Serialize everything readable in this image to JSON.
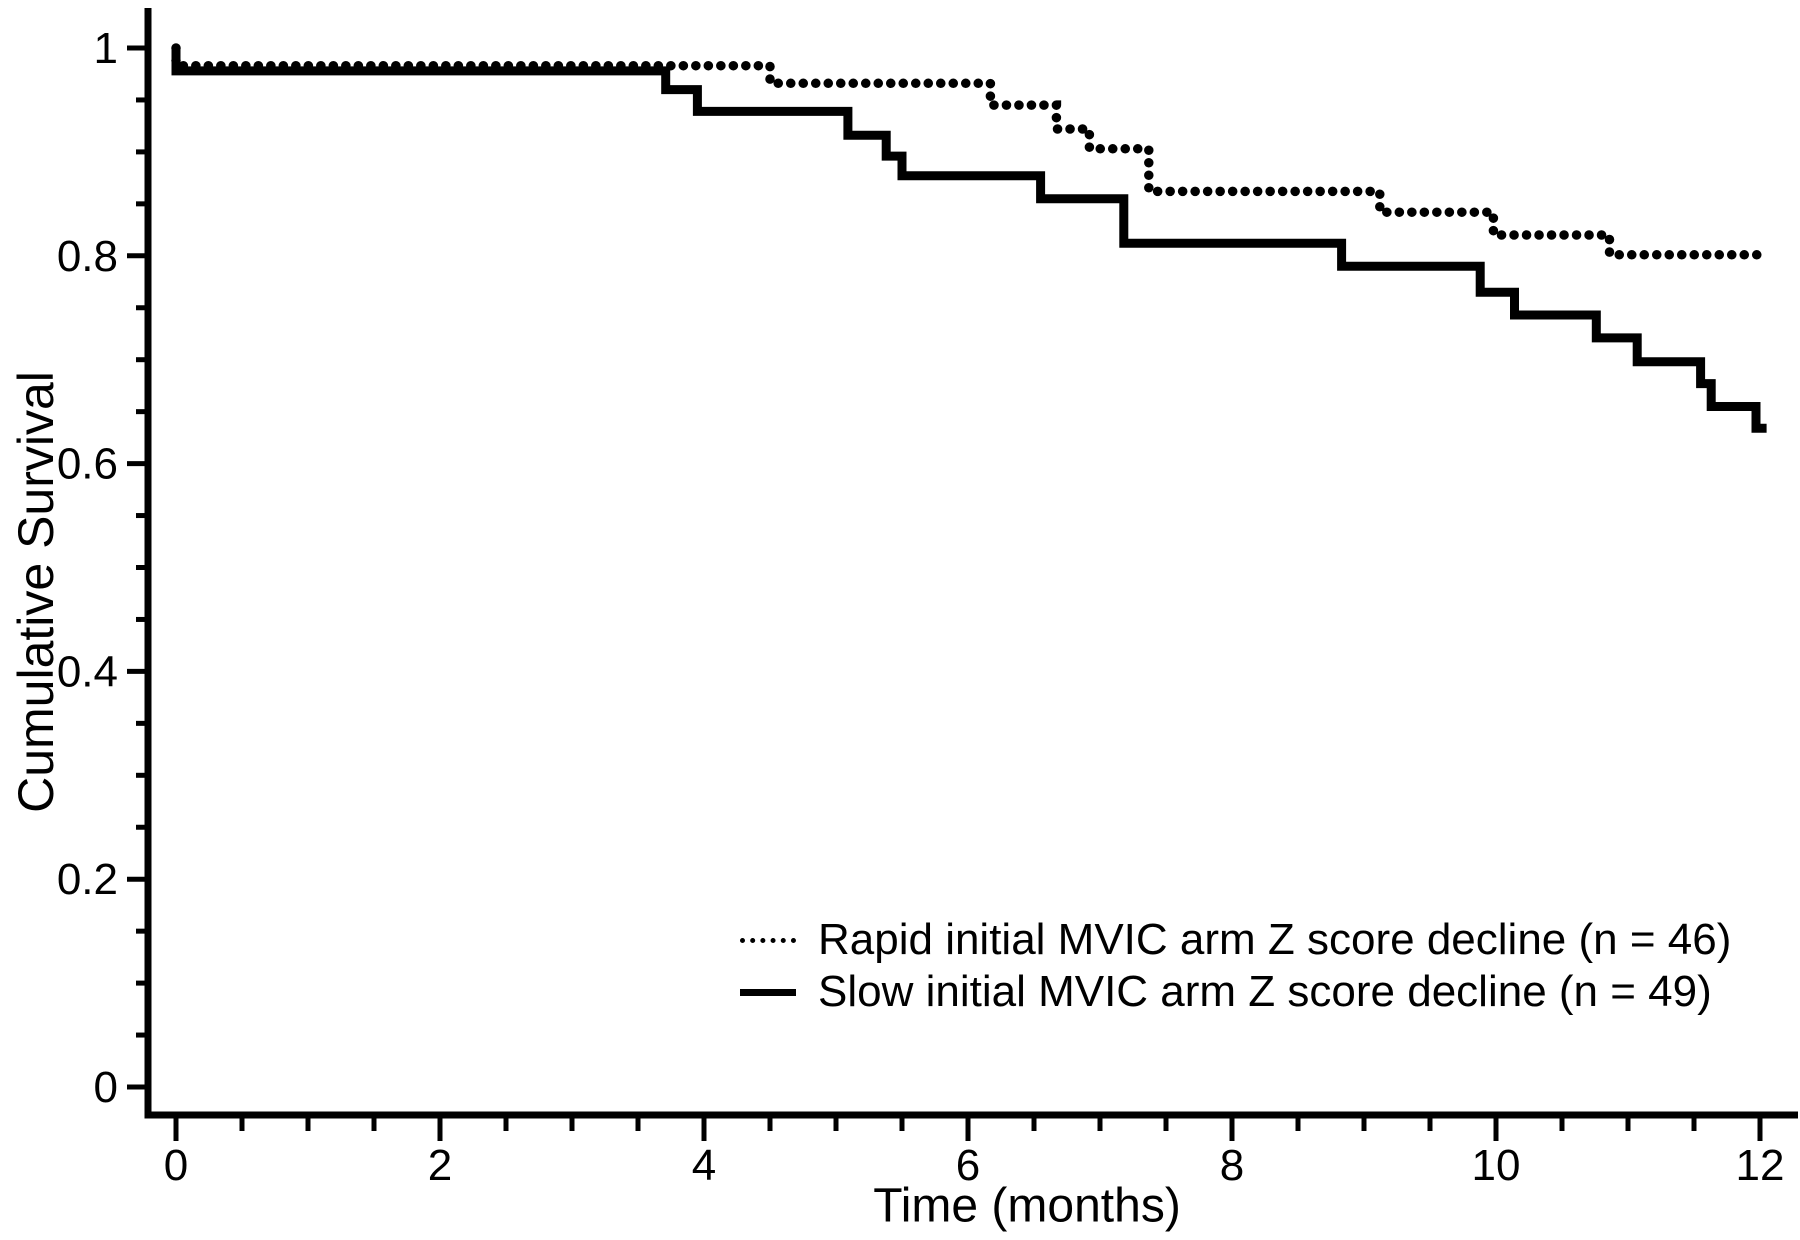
{
  "colors": {
    "line": "#000000",
    "background": "#ffffff"
  },
  "chart_data": {
    "type": "line",
    "subtype": "kaplan-meier-step",
    "title": "",
    "xlabel": "Time (months)",
    "ylabel": "Cumulative Survival",
    "xlim": [
      0,
      12
    ],
    "ylim": [
      0,
      1.0
    ],
    "grid": false,
    "legend_position": "inside lower right",
    "x_ticks_major": [
      0,
      2,
      4,
      6,
      8,
      10,
      12
    ],
    "x_tick_labels": [
      "0",
      "2",
      "4",
      "6",
      "8",
      "10",
      "12"
    ],
    "x_minor_step": 0.5,
    "y_ticks_major": [
      0,
      0.2,
      0.4,
      0.6,
      0.8,
      1
    ],
    "y_tick_labels": [
      "0",
      "0.2",
      "0.4",
      "0.6",
      "0.8",
      "1"
    ],
    "y_minor_step": 0.05,
    "series": [
      {
        "name": "Rapid initial MVIC arm Z score decline (n = 46)",
        "style": "dotted",
        "n": 46,
        "points": [
          [
            0,
            1.0
          ],
          [
            0,
            0.983
          ],
          [
            4.5,
            0.983
          ],
          [
            4.5,
            0.966
          ],
          [
            6.17,
            0.966
          ],
          [
            6.17,
            0.945
          ],
          [
            6.67,
            0.945
          ],
          [
            6.67,
            0.922
          ],
          [
            6.92,
            0.922
          ],
          [
            6.92,
            0.903
          ],
          [
            7.37,
            0.903
          ],
          [
            7.37,
            0.862
          ],
          [
            9.12,
            0.862
          ],
          [
            9.12,
            0.842
          ],
          [
            9.98,
            0.842
          ],
          [
            9.98,
            0.82
          ],
          [
            10.86,
            0.82
          ],
          [
            10.86,
            0.801
          ],
          [
            12.02,
            0.801
          ]
        ]
      },
      {
        "name": "Slow initial MVIC arm Z score decline (n = 49)",
        "style": "solid",
        "n": 49,
        "points": [
          [
            0,
            1.0
          ],
          [
            0,
            0.978
          ],
          [
            3.71,
            0.978
          ],
          [
            3.71,
            0.96
          ],
          [
            3.95,
            0.96
          ],
          [
            3.95,
            0.939
          ],
          [
            5.09,
            0.939
          ],
          [
            5.09,
            0.916
          ],
          [
            5.38,
            0.916
          ],
          [
            5.38,
            0.896
          ],
          [
            5.5,
            0.896
          ],
          [
            5.5,
            0.877
          ],
          [
            6.55,
            0.877
          ],
          [
            6.55,
            0.855
          ],
          [
            7.18,
            0.855
          ],
          [
            7.18,
            0.812
          ],
          [
            8.83,
            0.812
          ],
          [
            8.83,
            0.79
          ],
          [
            9.88,
            0.79
          ],
          [
            9.88,
            0.765
          ],
          [
            10.14,
            0.765
          ],
          [
            10.14,
            0.743
          ],
          [
            10.76,
            0.743
          ],
          [
            10.76,
            0.721
          ],
          [
            11.07,
            0.721
          ],
          [
            11.07,
            0.698
          ],
          [
            11.55,
            0.698
          ],
          [
            11.55,
            0.677
          ],
          [
            11.63,
            0.677
          ],
          [
            11.63,
            0.655
          ],
          [
            11.97,
            0.655
          ],
          [
            11.97,
            0.634
          ],
          [
            12.05,
            0.634
          ]
        ]
      }
    ]
  }
}
